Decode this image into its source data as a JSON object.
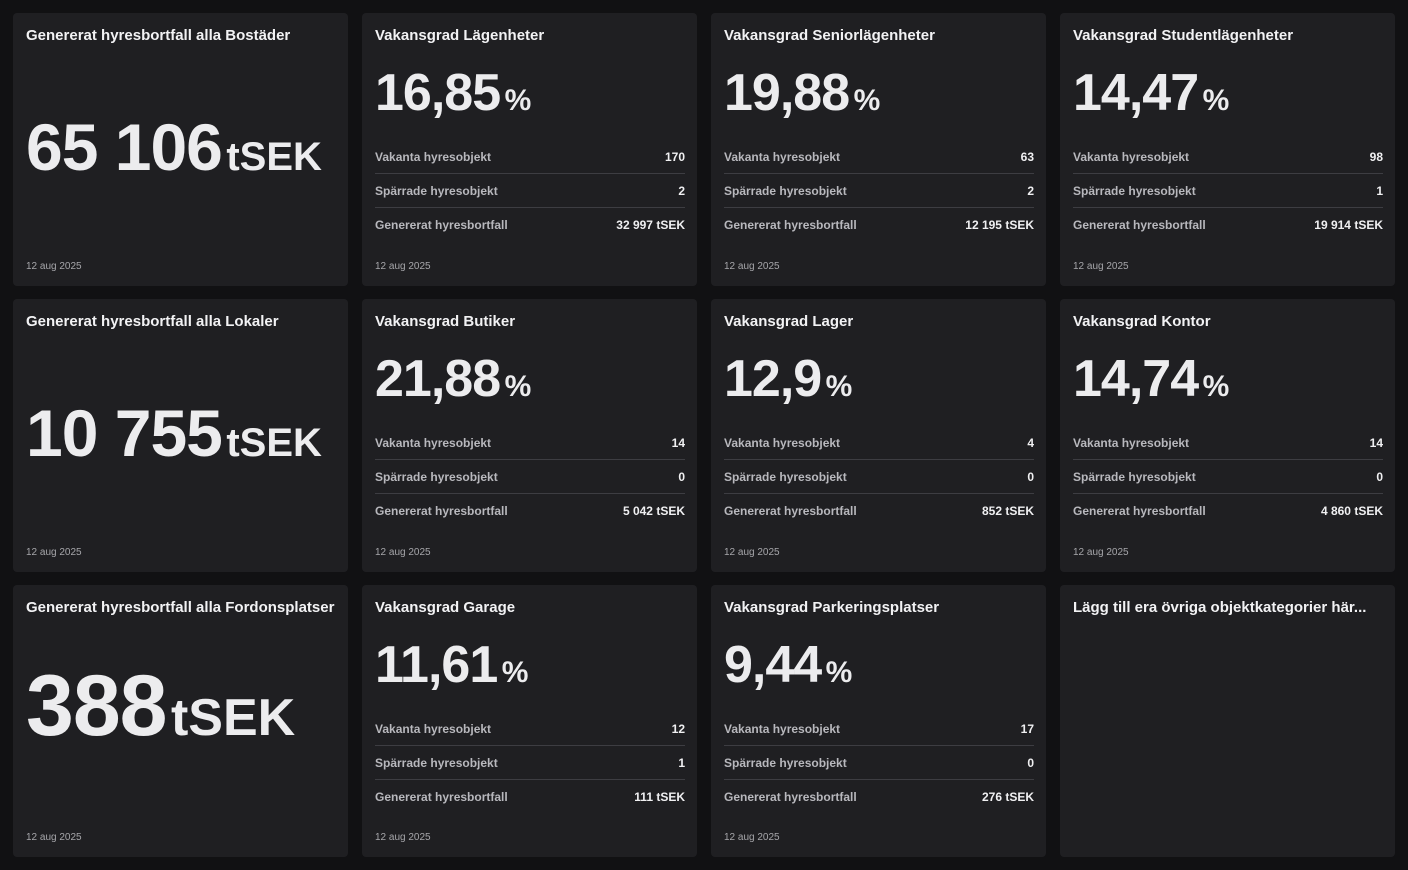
{
  "date": "12 aug 2025",
  "labels": {
    "vacant": "Vakanta hyresobjekt",
    "blocked": "Spärrade hyresobjekt",
    "loss": "Genererat hyresbortfall"
  },
  "rate_unit": "%",
  "total_unit": "tSEK",
  "cards": {
    "bostader_total": {
      "title": "Genererat hyresbortfall alla Bostäder",
      "value": "65 106"
    },
    "lagenheter": {
      "title": "Vakansgrad Lägenheter",
      "rate": "16,85",
      "vacant": "170",
      "blocked": "2",
      "loss": "32 997 tSEK"
    },
    "seniorlagenheter": {
      "title": "Vakansgrad Seniorlägenheter",
      "rate": "19,88",
      "vacant": "63",
      "blocked": "2",
      "loss": "12 195 tSEK"
    },
    "studentlagenheter": {
      "title": "Vakansgrad Studentlägenheter",
      "rate": "14,47",
      "vacant": "98",
      "blocked": "1",
      "loss": "19 914 tSEK"
    },
    "lokaler_total": {
      "title": "Genererat hyresbortfall alla Lokaler",
      "value": "10 755"
    },
    "butiker": {
      "title": "Vakansgrad Butiker",
      "rate": "21,88",
      "vacant": "14",
      "blocked": "0",
      "loss": "5 042 tSEK"
    },
    "lager": {
      "title": "Vakansgrad Lager",
      "rate": "12,9",
      "vacant": "4",
      "blocked": "0",
      "loss": "852 tSEK"
    },
    "kontor": {
      "title": "Vakansgrad Kontor",
      "rate": "14,74",
      "vacant": "14",
      "blocked": "0",
      "loss": "4 860 tSEK"
    },
    "fordon_total": {
      "title": "Genererat hyresbortfall alla Fordonsplatser",
      "value": "388"
    },
    "garage": {
      "title": "Vakansgrad Garage",
      "rate": "11,61",
      "vacant": "12",
      "blocked": "1",
      "loss": "111 tSEK"
    },
    "parkering": {
      "title": "Vakansgrad Parkeringsplatser",
      "rate": "9,44",
      "vacant": "17",
      "blocked": "0",
      "loss": "276 tSEK"
    },
    "ovriga": {
      "title": "Lägg till era övriga objektkategorier här..."
    }
  }
}
